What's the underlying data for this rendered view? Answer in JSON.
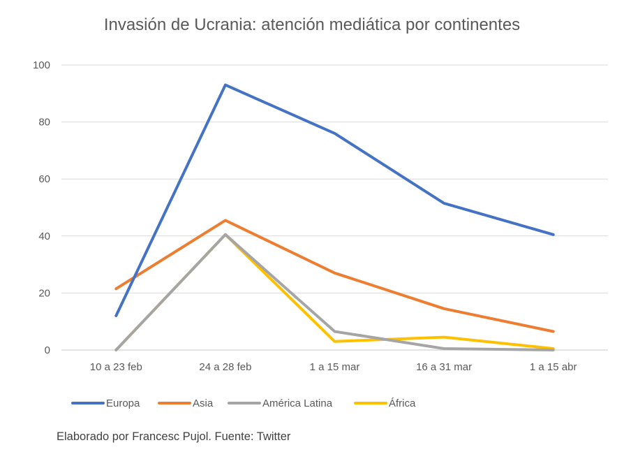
{
  "chart_data": {
    "type": "line",
    "title": "Invasión de Ucrania: atención mediática por continentes",
    "categories": [
      "10 a 23 feb",
      "24 a 28 feb",
      "1 a 15 mar",
      "16 a 31 mar",
      "1 a 15 abr"
    ],
    "series": [
      {
        "name": "Europa",
        "color": "#4472C4",
        "values": [
          12,
          93,
          76,
          51.5,
          40.5
        ]
      },
      {
        "name": "Asia",
        "color": "#ED7D31",
        "values": [
          21.5,
          45.5,
          27,
          14.5,
          6.5
        ]
      },
      {
        "name": "América Latina",
        "color": "#A5A5A5",
        "values": [
          0,
          40.5,
          6.5,
          0.5,
          0
        ]
      },
      {
        "name": "África",
        "color": "#FFC000",
        "values": [
          0,
          40.5,
          3,
          4.5,
          0.5
        ]
      }
    ],
    "ylim": [
      0,
      100
    ],
    "yticks": [
      0,
      20,
      40,
      60,
      80,
      100
    ],
    "xlabel": "",
    "ylabel": "",
    "grid": true,
    "legend_position": "bottom-left"
  },
  "source_note": "Elaborado por Francesc Pujol. Fuente: Twitter"
}
